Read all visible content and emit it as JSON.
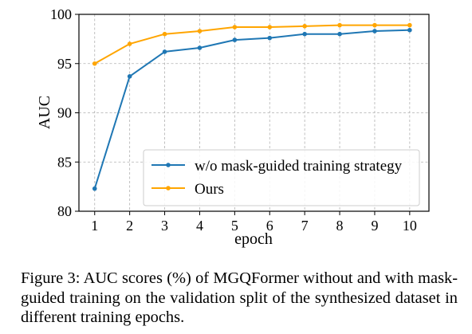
{
  "chart_data": {
    "type": "line",
    "x": [
      1,
      2,
      3,
      4,
      5,
      6,
      7,
      8,
      9,
      10
    ],
    "xlabel": "epoch",
    "ylabel": "AUC",
    "xticks": [
      "1",
      "2",
      "3",
      "4",
      "5",
      "6",
      "7",
      "8",
      "9",
      "10"
    ],
    "yticks": [
      "80",
      "85",
      "90",
      "95",
      "100"
    ],
    "xlim": [
      0.55,
      10.55
    ],
    "ylim": [
      80,
      100
    ],
    "grid": true,
    "legend_position": "lower-right",
    "series": [
      {
        "name": "w/o mask-guided training strategy",
        "color": "#1f77b4",
        "values": [
          82.3,
          93.7,
          96.2,
          96.6,
          97.4,
          97.6,
          98.0,
          98.0,
          98.3,
          98.4
        ]
      },
      {
        "name": "Ours",
        "color": "#ffa500",
        "values": [
          95.0,
          97.0,
          98.0,
          98.3,
          98.7,
          98.7,
          98.8,
          98.9,
          98.9,
          98.9
        ]
      }
    ]
  },
  "caption": {
    "label": "Figure 3:",
    "text": "AUC scores (%) of MGQFormer without and with mask-guided training on the validation split of the synthesized dataset in different training epochs."
  }
}
